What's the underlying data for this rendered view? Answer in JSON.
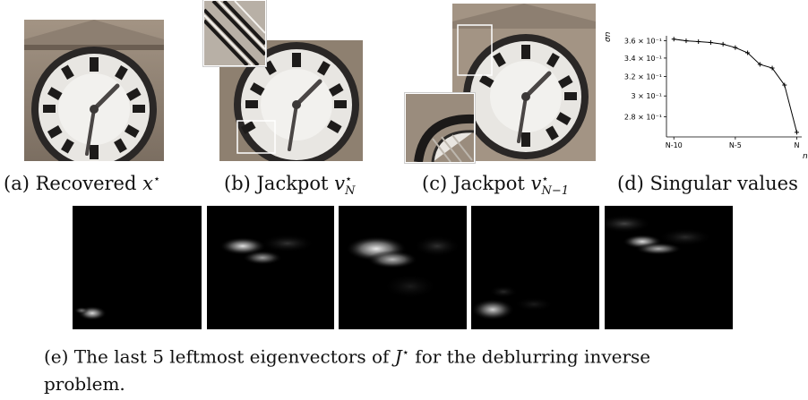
{
  "captions": {
    "a_prefix": "(a) Recovered ",
    "a_sym": "x",
    "b_prefix": "(b) Jackpot ",
    "b_sym": "v",
    "b_sub": "N",
    "c_prefix": "(c) Jackpot ",
    "c_sym": "v",
    "c_sub": "N−1",
    "d_text": "(d) Singular values",
    "e_prefix": "(e) The last 5 leftmost eigenvectors of ",
    "e_sym": "J",
    "e_suffix": " for the deblurring inverse",
    "e_line2": "problem.",
    "star": "⋆"
  },
  "chart_data": {
    "type": "line",
    "ylabel": "σn",
    "xlabel": "n",
    "x": [
      -10,
      -9,
      -8,
      -7,
      -6,
      -5,
      -4,
      -3,
      -2,
      -1,
      0
    ],
    "y": [
      0.362,
      0.36,
      0.359,
      0.358,
      0.356,
      0.352,
      0.346,
      0.333,
      0.329,
      0.311,
      0.266
    ],
    "x_ticks": [
      {
        "v": -10,
        "label": "N-10"
      },
      {
        "v": -5,
        "label": "N-5"
      },
      {
        "v": 0,
        "label": "N"
      }
    ],
    "y_ticks": [
      {
        "v": 0.36,
        "label": "3.6 × 10⁻¹"
      },
      {
        "v": 0.34,
        "label": "3.4 × 10⁻¹"
      },
      {
        "v": 0.32,
        "label": "3.2 × 10⁻¹"
      },
      {
        "v": 0.3,
        "label": "3 × 10⁻¹"
      },
      {
        "v": 0.28,
        "label": "2.8 × 10⁻¹"
      }
    ],
    "ylim": [
      0.262,
      0.366
    ],
    "xlim": [
      -10.6,
      0.4
    ],
    "log_y": true,
    "grid": false,
    "marker": "+",
    "color": "#000000"
  }
}
